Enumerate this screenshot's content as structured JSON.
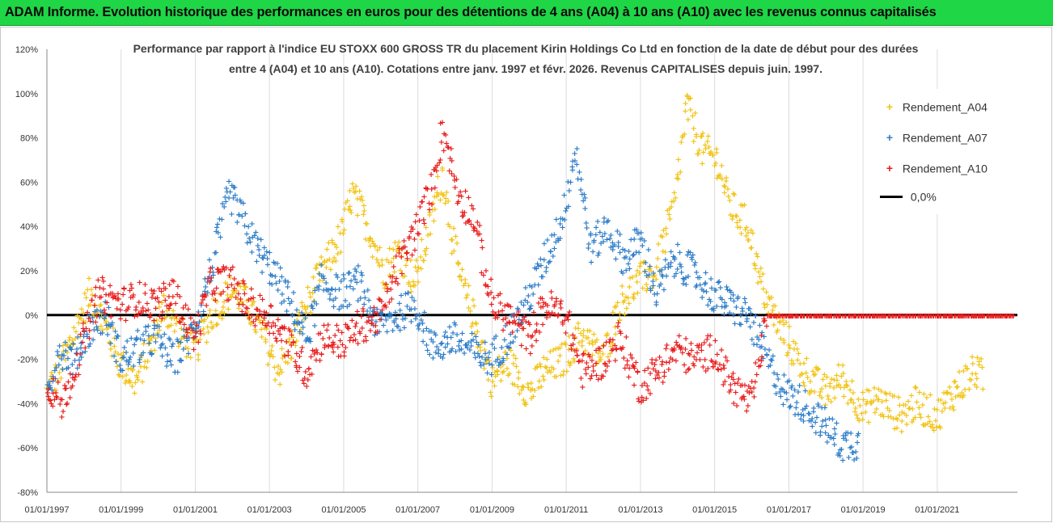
{
  "header": {
    "banner_text": "ADAM Informe. Evolution historique des performances en euros pour des détentions de 4 ans (A04) à 10 ans (A10) avec les revenus connus capitalisés",
    "banner_color": "#1fd646"
  },
  "chart_data": {
    "type": "scatter",
    "title_line1": "Performance par rapport à l'indice EU STOXX 600 GROSS TR  du placement Kirin Holdings Co Ltd en fonction de la date de début pour des durées",
    "title_line2": "entre 4 (A04) et 10 ans (A10).  Cotations entre janv. 1997 et févr. 2026. Revenus CAPITALISES depuis juin. 1997.",
    "ylim": [
      -80,
      120
    ],
    "y_ticks": [
      "120%",
      "100%",
      "80%",
      "60%",
      "40%",
      "20%",
      "0%",
      "-20%",
      "-40%",
      "-60%",
      "-80%"
    ],
    "x_ticks": [
      "01/01/1997",
      "01/01/1999",
      "01/01/2001",
      "01/01/2003",
      "01/01/2005",
      "01/01/2007",
      "01/01/2009",
      "01/01/2011",
      "01/01/2013",
      "01/01/2015",
      "01/01/2017",
      "01/01/2019",
      "01/01/2021"
    ],
    "xlim": [
      "1997-01-01",
      "2023-03-01"
    ],
    "grid": "vertical",
    "legend_position": "right",
    "series": [
      {
        "name": "Rendement_A04",
        "color": "#f2c314",
        "points": [
          [
            "1997-01-01",
            -35
          ],
          [
            "1997-06-01",
            -22
          ],
          [
            "1997-10-01",
            -8
          ],
          [
            "1998-03-01",
            10
          ],
          [
            "1998-08-01",
            -5
          ],
          [
            "1999-01-01",
            -22
          ],
          [
            "1999-06-01",
            -30
          ],
          [
            "1999-10-01",
            -15
          ],
          [
            "2000-03-01",
            5
          ],
          [
            "2000-08-01",
            -8
          ],
          [
            "2001-01-01",
            -15
          ],
          [
            "2001-06-01",
            0
          ],
          [
            "2002-01-01",
            12
          ],
          [
            "2002-06-01",
            5
          ],
          [
            "2002-12-01",
            -12
          ],
          [
            "2003-04-01",
            -25
          ],
          [
            "2003-09-01",
            -10
          ],
          [
            "2004-01-01",
            5
          ],
          [
            "2004-06-01",
            20
          ],
          [
            "2004-12-01",
            35
          ],
          [
            "2005-04-01",
            55
          ],
          [
            "2005-09-01",
            40
          ],
          [
            "2006-02-01",
            20
          ],
          [
            "2006-07-01",
            30
          ],
          [
            "2006-12-01",
            15
          ],
          [
            "2007-05-01",
            40
          ],
          [
            "2007-09-01",
            65
          ],
          [
            "2008-02-01",
            20
          ],
          [
            "2008-08-01",
            -5
          ],
          [
            "2009-01-01",
            -30
          ],
          [
            "2009-06-01",
            -20
          ],
          [
            "2010-01-01",
            -35
          ],
          [
            "2010-06-01",
            -25
          ],
          [
            "2010-12-01",
            -20
          ],
          [
            "2011-06-01",
            -8
          ],
          [
            "2012-01-01",
            -20
          ],
          [
            "2012-06-01",
            5
          ],
          [
            "2012-12-01",
            15
          ],
          [
            "2013-06-01",
            20
          ],
          [
            "2013-12-01",
            50
          ],
          [
            "2014-04-01",
            95
          ],
          [
            "2014-09-01",
            75
          ],
          [
            "2015-02-01",
            70
          ],
          [
            "2015-06-01",
            50
          ],
          [
            "2015-12-01",
            40
          ],
          [
            "2016-04-01",
            15
          ],
          [
            "2016-08-01",
            0
          ],
          [
            "2016-12-01",
            -10
          ],
          [
            "2017-06-01",
            -25
          ],
          [
            "2018-01-01",
            -35
          ],
          [
            "2018-06-01",
            -28
          ],
          [
            "2019-01-01",
            -42
          ],
          [
            "2019-06-01",
            -38
          ],
          [
            "2020-01-01",
            -45
          ],
          [
            "2020-06-01",
            -40
          ],
          [
            "2021-01-01",
            -45
          ],
          [
            "2021-06-01",
            -35
          ],
          [
            "2022-01-01",
            -25
          ],
          [
            "2022-04-01",
            -28
          ]
        ]
      },
      {
        "name": "Rendement_A07",
        "color": "#2e7dc8",
        "points": [
          [
            "1997-01-01",
            -35
          ],
          [
            "1997-05-01",
            -15
          ],
          [
            "1997-10-01",
            -20
          ],
          [
            "1998-03-01",
            -5
          ],
          [
            "1998-08-01",
            0
          ],
          [
            "1999-01-01",
            -20
          ],
          [
            "1999-06-01",
            -15
          ],
          [
            "1999-12-01",
            -10
          ],
          [
            "2000-06-01",
            -20
          ],
          [
            "2000-12-01",
            -8
          ],
          [
            "2001-06-01",
            20
          ],
          [
            "2001-12-01",
            55
          ],
          [
            "2002-04-01",
            45
          ],
          [
            "2002-09-01",
            30
          ],
          [
            "2003-02-01",
            20
          ],
          [
            "2003-08-01",
            5
          ],
          [
            "2004-01-01",
            -10
          ],
          [
            "2004-06-01",
            15
          ],
          [
            "2004-12-01",
            10
          ],
          [
            "2005-06-01",
            15
          ],
          [
            "2005-12-01",
            -5
          ],
          [
            "2006-06-01",
            0
          ],
          [
            "2006-12-01",
            5
          ],
          [
            "2007-06-01",
            -15
          ],
          [
            "2007-12-01",
            -10
          ],
          [
            "2008-06-01",
            -15
          ],
          [
            "2008-12-01",
            -20
          ],
          [
            "2009-06-01",
            -10
          ],
          [
            "2009-12-01",
            5
          ],
          [
            "2010-06-01",
            25
          ],
          [
            "2010-12-01",
            45
          ],
          [
            "2011-04-01",
            75
          ],
          [
            "2011-09-01",
            30
          ],
          [
            "2012-02-01",
            40
          ],
          [
            "2012-08-01",
            25
          ],
          [
            "2013-01-01",
            35
          ],
          [
            "2013-06-01",
            10
          ],
          [
            "2013-12-01",
            25
          ],
          [
            "2014-06-01",
            20
          ],
          [
            "2014-12-01",
            10
          ],
          [
            "2015-06-01",
            5
          ],
          [
            "2015-12-01",
            0
          ],
          [
            "2016-06-01",
            -20
          ],
          [
            "2016-12-01",
            -35
          ],
          [
            "2017-06-01",
            -40
          ],
          [
            "2018-01-01",
            -50
          ],
          [
            "2018-06-01",
            -58
          ],
          [
            "2018-12-01",
            -57
          ]
        ]
      },
      {
        "name": "Rendement_A10",
        "color": "#e81d1d",
        "points": [
          [
            "1997-01-01",
            -30
          ],
          [
            "1997-06-01",
            -40
          ],
          [
            "1997-12-01",
            -15
          ],
          [
            "1998-06-01",
            10
          ],
          [
            "1999-01-01",
            5
          ],
          [
            "1999-06-01",
            8
          ],
          [
            "2000-01-01",
            5
          ],
          [
            "2000-06-01",
            10
          ],
          [
            "2001-01-01",
            -10
          ],
          [
            "2001-06-01",
            15
          ],
          [
            "2002-01-01",
            15
          ],
          [
            "2002-06-01",
            5
          ],
          [
            "2003-01-01",
            0
          ],
          [
            "2003-06-01",
            -10
          ],
          [
            "2004-01-01",
            -25
          ],
          [
            "2004-06-01",
            -10
          ],
          [
            "2005-01-01",
            -12
          ],
          [
            "2005-06-01",
            -5
          ],
          [
            "2006-01-01",
            0
          ],
          [
            "2006-06-01",
            20
          ],
          [
            "2007-01-01",
            40
          ],
          [
            "2007-06-01",
            60
          ],
          [
            "2007-09-01",
            85
          ],
          [
            "2008-02-01",
            55
          ],
          [
            "2008-07-01",
            45
          ],
          [
            "2009-01-01",
            5
          ],
          [
            "2009-06-01",
            0
          ],
          [
            "2010-01-01",
            -10
          ],
          [
            "2010-06-01",
            5
          ],
          [
            "2011-01-01",
            0
          ],
          [
            "2011-06-01",
            -25
          ],
          [
            "2012-01-01",
            -20
          ],
          [
            "2012-06-01",
            -10
          ],
          [
            "2013-01-01",
            -32
          ],
          [
            "2013-06-01",
            -25
          ],
          [
            "2014-01-01",
            -15
          ],
          [
            "2014-06-01",
            -20
          ],
          [
            "2015-01-01",
            -15
          ],
          [
            "2015-06-01",
            -30
          ],
          [
            "2016-01-01",
            -40
          ],
          [
            "2016-06-01",
            0
          ],
          [
            "2017-01-01",
            0
          ],
          [
            "2018-01-01",
            0
          ],
          [
            "2019-01-01",
            0
          ],
          [
            "2020-01-01",
            0
          ],
          [
            "2021-01-01",
            0
          ],
          [
            "2022-01-01",
            0
          ],
          [
            "2023-02-01",
            0
          ]
        ]
      }
    ],
    "reference_line": {
      "name": "0,0%",
      "value": 0,
      "color": "#000000"
    }
  }
}
